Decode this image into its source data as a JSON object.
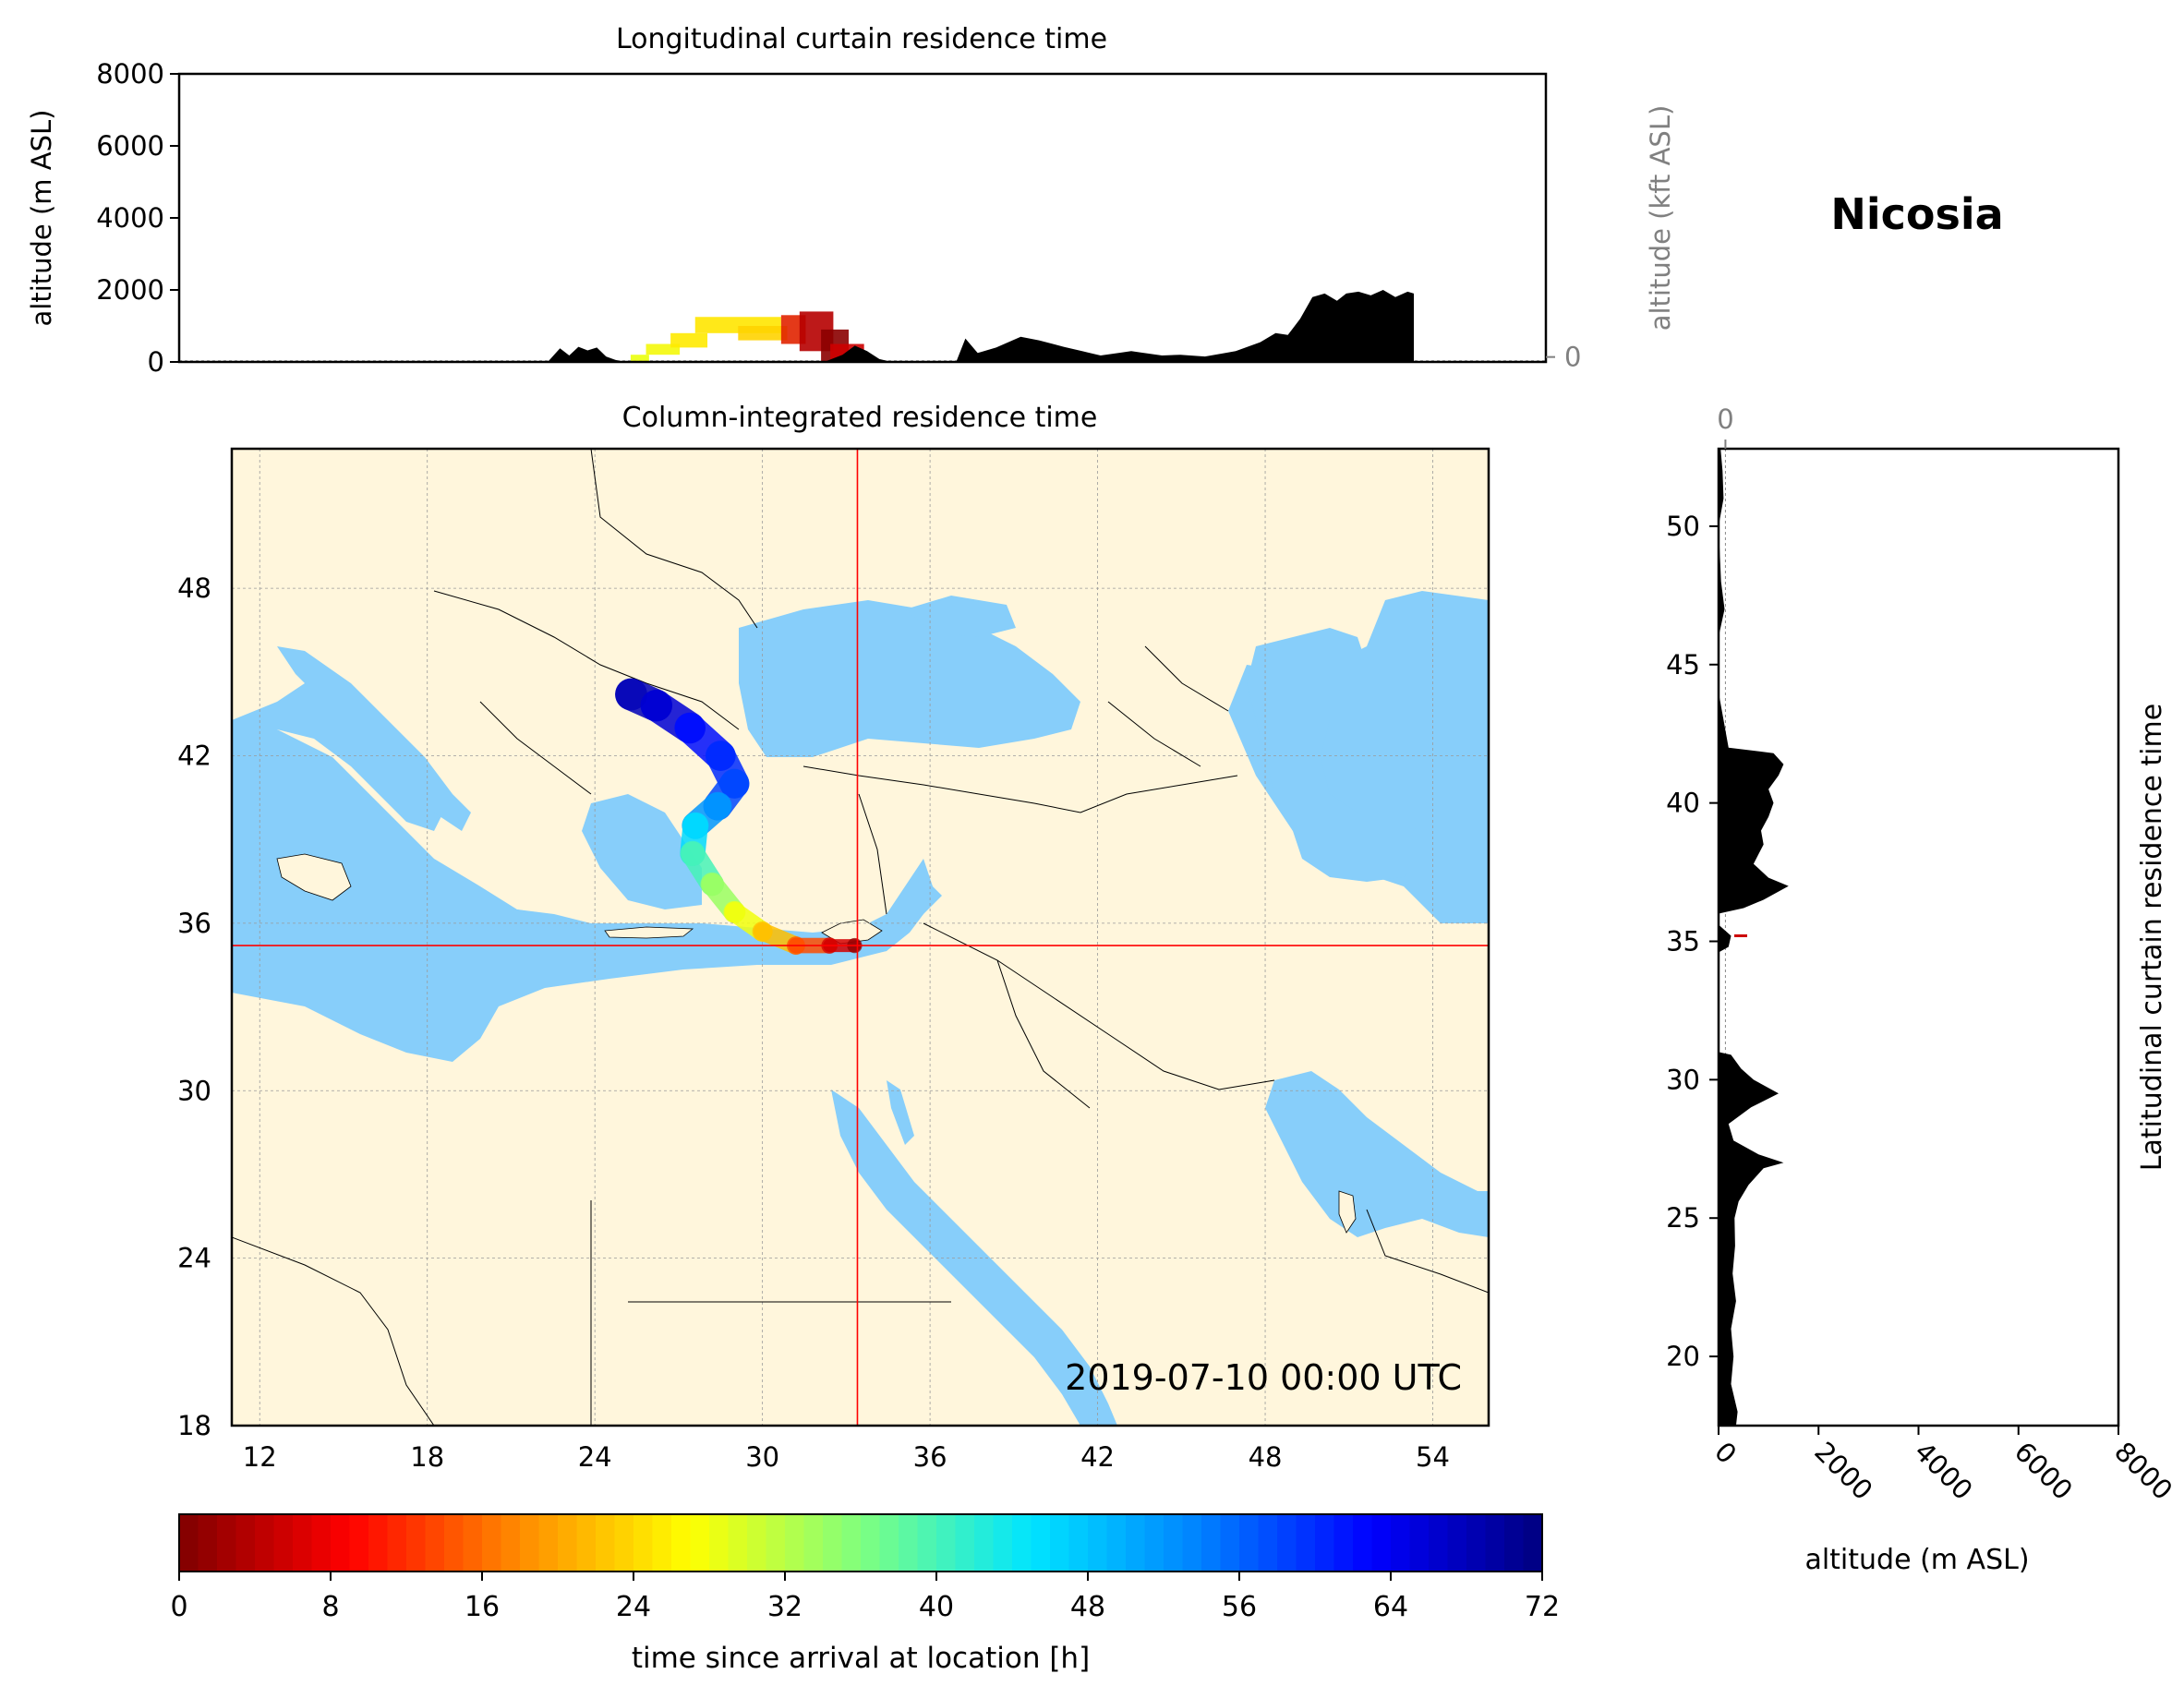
{
  "location_title": "Nicosia",
  "timestamp": "2019-07-10 00:00 UTC",
  "colors": {
    "sea": "#87cefa",
    "land": "#fff6dc",
    "crosshair": "#ff0000",
    "terrain": "#000000",
    "secondary_axis": "#808080"
  },
  "chart_data": [
    {
      "id": "longitudinal",
      "type": "area",
      "title": "Longitudinal curtain residence time",
      "xlabel": "",
      "ylabel": "altitude (m ASL)",
      "ylabel_right": "altitude (kft ASL)",
      "ylim": [
        0,
        8000
      ],
      "xlim": [
        11,
        55.5
      ],
      "yticks": [
        "0",
        "2000",
        "4000",
        "6000",
        "8000"
      ],
      "yticks_right": [
        "0",
        "50",
        "100"
      ],
      "grid": true,
      "terrain": {
        "x": [
          23.0,
          23.4,
          23.7,
          24.0,
          24.3,
          24.6,
          24.9,
          25.2,
          25.5,
          26.0,
          28.0,
          29.0,
          30.0,
          31.0,
          32.0,
          32.6,
          33.0,
          33.4,
          33.8,
          34.2,
          34.6,
          35.0,
          35.2,
          35.5,
          36.3,
          36.6,
          37.0,
          37.6,
          38.4,
          39.0,
          39.8,
          40.4,
          41.0,
          42.0,
          43.0,
          43.6,
          44.4,
          45.4,
          46.2,
          46.7,
          47.1,
          47.5,
          47.9,
          48.3,
          48.7,
          49.0,
          49.4,
          49.8,
          50.2,
          50.6,
          51.0,
          51.2,
          51.2
        ],
        "y": [
          0,
          380,
          180,
          420,
          320,
          400,
          150,
          60,
          0,
          0,
          0,
          0,
          0,
          0,
          0,
          200,
          450,
          300,
          80,
          0,
          0,
          0,
          0,
          0,
          0,
          650,
          250,
          400,
          700,
          600,
          420,
          300,
          180,
          300,
          180,
          200,
          150,
          300,
          550,
          800,
          750,
          1200,
          1800,
          1900,
          1700,
          1900,
          1950,
          1850,
          2000,
          1800,
          1950,
          1900,
          0
        ]
      },
      "residence": [
        {
          "x0": 25.7,
          "x1": 26.3,
          "y0": 0,
          "y1": 200,
          "color": "#eaff0d"
        },
        {
          "x0": 26.2,
          "x1": 27.3,
          "y0": 200,
          "y1": 500,
          "color": "#f4f80b"
        },
        {
          "x0": 27.0,
          "x1": 28.2,
          "y0": 400,
          "y1": 800,
          "color": "#ffea00"
        },
        {
          "x0": 27.8,
          "x1": 30.6,
          "y0": 800,
          "y1": 1250,
          "color": "#ffe600"
        },
        {
          "x0": 29.2,
          "x1": 30.8,
          "y0": 600,
          "y1": 1000,
          "color": "#ffd300"
        },
        {
          "x0": 30.6,
          "x1": 31.4,
          "y0": 500,
          "y1": 1300,
          "color": "#e12400"
        },
        {
          "x0": 31.2,
          "x1": 32.3,
          "y0": 300,
          "y1": 1400,
          "color": "#b60000"
        },
        {
          "x0": 31.9,
          "x1": 32.8,
          "y0": 0,
          "y1": 900,
          "color": "#8b0000"
        },
        {
          "x0": 32.2,
          "x1": 33.3,
          "y0": 0,
          "y1": 500,
          "color": "#cd0000"
        }
      ]
    },
    {
      "id": "column",
      "type": "heatmap",
      "title": "Column-integrated residence time",
      "xlim": [
        11,
        56
      ],
      "ylim": [
        18,
        53
      ],
      "xticks": [
        "12",
        "18",
        "24",
        "30",
        "36",
        "42",
        "48",
        "54"
      ],
      "yticks": [
        "18",
        "24",
        "30",
        "36",
        "42",
        "48"
      ],
      "crosshair": {
        "lon": 33.4,
        "lat": 35.2
      },
      "plume": [
        {
          "lon": 25.3,
          "lat": 44.2,
          "hours": 68
        },
        {
          "lon": 26.2,
          "lat": 43.8,
          "hours": 66
        },
        {
          "lon": 27.4,
          "lat": 43.0,
          "hours": 62
        },
        {
          "lon": 28.5,
          "lat": 42.0,
          "hours": 60
        },
        {
          "lon": 29.0,
          "lat": 41.0,
          "hours": 58
        },
        {
          "lon": 28.4,
          "lat": 40.2,
          "hours": 52
        },
        {
          "lon": 27.6,
          "lat": 39.5,
          "hours": 46
        },
        {
          "lon": 27.5,
          "lat": 38.5,
          "hours": 40
        },
        {
          "lon": 28.2,
          "lat": 37.4,
          "hours": 34
        },
        {
          "lon": 29.0,
          "lat": 36.4,
          "hours": 28
        },
        {
          "lon": 30.0,
          "lat": 35.7,
          "hours": 22
        },
        {
          "lon": 31.2,
          "lat": 35.2,
          "hours": 14
        },
        {
          "lon": 32.4,
          "lat": 35.2,
          "hours": 6
        },
        {
          "lon": 33.3,
          "lat": 35.2,
          "hours": 1
        }
      ]
    },
    {
      "id": "latitudinal",
      "type": "area",
      "title": "Latitudinal curtain residence time",
      "xlabel": "altitude (m ASL)",
      "xlim": [
        0,
        8000
      ],
      "ylim": [
        17.5,
        52.8
      ],
      "xticks": [
        "0",
        "2000",
        "4000",
        "6000",
        "8000"
      ],
      "xticks_top": [
        "0",
        "50",
        "100"
      ],
      "yticks": [
        "20",
        "25",
        "30",
        "35",
        "40",
        "45",
        "50"
      ],
      "grid": true,
      "terrain": {
        "lat": [
          17.5,
          18.0,
          19.0,
          20.0,
          21.0,
          22.0,
          23.0,
          24.0,
          25.0,
          25.6,
          26.2,
          26.8,
          27.0,
          27.3,
          27.8,
          28.4,
          29.0,
          29.5,
          30.0,
          30.4,
          30.9,
          31.0,
          34.6,
          34.8,
          35.2,
          35.6,
          36.0,
          36.2,
          36.5,
          37.0,
          37.3,
          37.8,
          38.5,
          39.0,
          39.5,
          40.0,
          40.5,
          41.0,
          41.4,
          41.8,
          42.0,
          44.0,
          46.0,
          47.0,
          48.0,
          50.0,
          51.0,
          52.0,
          52.8
        ],
        "alt": [
          350,
          380,
          250,
          300,
          250,
          350,
          280,
          330,
          320,
          400,
          600,
          900,
          1300,
          800,
          300,
          200,
          650,
          1200,
          700,
          450,
          250,
          0,
          0,
          200,
          250,
          0,
          0,
          500,
          900,
          1400,
          1000,
          700,
          900,
          850,
          1000,
          1100,
          1000,
          1200,
          1300,
          1100,
          200,
          0,
          0,
          120,
          50,
          0,
          100,
          80,
          40
        ]
      }
    }
  ],
  "colorbar": {
    "label": "time since arrival at location [h]",
    "min": 0,
    "max": 72,
    "ticks": [
      "0",
      "8",
      "16",
      "24",
      "32",
      "40",
      "48",
      "56",
      "64",
      "72"
    ],
    "stops": [
      "#7f0000",
      "#ff0000",
      "#ff8c00",
      "#ffff00",
      "#7fff7f",
      "#00e5ff",
      "#0080ff",
      "#0000ff",
      "#00007f"
    ]
  }
}
